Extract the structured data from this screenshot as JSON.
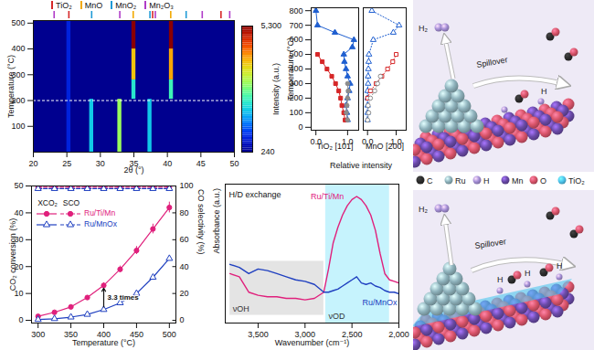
{
  "chart_data": [
    {
      "type": "heatmap",
      "xlabel": "2θ (°)",
      "ylabel": "Temperature (°C)",
      "xlim": [
        20,
        50
      ],
      "xticks": [
        20,
        25,
        30,
        35,
        40,
        45,
        50
      ],
      "ylim": [
        0,
        510
      ],
      "yticks": [
        100,
        200,
        300,
        400,
        500
      ],
      "cells": [
        {
          "x": [
            20,
            50
          ],
          "y": [
            0,
            510
          ],
          "value": 240
        },
        {
          "x": [
            25.0,
            25.6
          ],
          "y": [
            0,
            510
          ],
          "value": 800
        },
        {
          "x": [
            28.4,
            29.0
          ],
          "y": [
            0,
            205
          ],
          "value": 1900
        },
        {
          "x": [
            32.6,
            33.2
          ],
          "y": [
            0,
            205
          ],
          "value": 3000
        },
        {
          "x": [
            37.1,
            37.7
          ],
          "y": [
            0,
            205
          ],
          "value": 1900
        },
        {
          "x": [
            34.7,
            35.3
          ],
          "y": [
            205,
            280
          ],
          "value": 2200
        },
        {
          "x": [
            34.7,
            35.3
          ],
          "y": [
            280,
            400
          ],
          "value": 3800
        },
        {
          "x": [
            34.7,
            35.3
          ],
          "y": [
            400,
            510
          ],
          "value": 5300
        },
        {
          "x": [
            40.3,
            40.9
          ],
          "y": [
            205,
            280
          ],
          "value": 2400
        },
        {
          "x": [
            40.3,
            40.9
          ],
          "y": [
            280,
            400
          ],
          "value": 4000
        },
        {
          "x": [
            40.3,
            40.9
          ],
          "y": [
            400,
            510
          ],
          "value": 5300
        }
      ],
      "colorbar": {
        "label": "Intensity (a.u.)",
        "range": [
          240,
          5300
        ],
        "ticks": [
          240,
          5300
        ]
      },
      "hline": 200,
      "phases": [
        {
          "name": "TiO₂",
          "color": "#d62728",
          "positions": [
            25.3,
            37.8,
            48.0
          ]
        },
        {
          "name": "MnO",
          "color": "#f2a900",
          "positions": [
            34.9,
            40.5
          ]
        },
        {
          "name": "MnO₂",
          "color": "#1f9ad6",
          "positions": [
            28.7,
            37.4,
            42.8
          ]
        },
        {
          "name": "Mn₂O₃",
          "color": "#b03cc8",
          "positions": [
            23.1,
            32.9,
            38.2,
            45.2,
            49.3
          ]
        }
      ]
    },
    {
      "type": "scatter",
      "xlabel": "Relative intensity",
      "ylabel": "Temperature (°C)",
      "ylim": [
        -20,
        820
      ],
      "yticks": [
        0,
        100,
        200,
        300,
        400,
        500,
        600,
        700,
        800
      ],
      "panels": [
        {
          "title": "TiO₂ [101]",
          "xlim": [
            -0.15,
            1.35
          ],
          "xticks": [
            0,
            1
          ],
          "series": [
            {
              "color": "#1f5fd0",
              "marker": "triangle",
              "line_style": "solid",
              "x": [
                1.0,
                0.98,
                0.95,
                1.0,
                1.05,
                1.08,
                1.0,
                0.95,
                0.9,
                0.88,
                1.15,
                1.2,
                0.6,
                0.05,
                0.0
              ],
              "y": [
                50,
                100,
                150,
                200,
                250,
                300,
                350,
                400,
                450,
                500,
                550,
                600,
                650,
                700,
                800
              ]
            },
            {
              "color": "#d62728",
              "marker": "square",
              "line_style": "solid",
              "x": [
                0.92,
                0.88,
                0.82,
                0.78,
                0.72,
                0.62,
                0.5,
                0.35,
                0.2,
                0.05
              ],
              "y": [
                50,
                100,
                150,
                200,
                250,
                300,
                350,
                400,
                450,
                500
              ]
            },
            {
              "color": "#8c8c8c",
              "marker": "circle",
              "line_style": "solid",
              "x": [
                1.0,
                0.96,
                0.98,
                1.0,
                1.02,
                1.0
              ],
              "y": [
                50,
                100,
                150,
                200,
                250,
                300
              ]
            }
          ]
        },
        {
          "title": "MnO [200]",
          "xlim": [
            -0.15,
            1.35
          ],
          "xticks": [
            0,
            1
          ],
          "series": [
            {
              "color": "#1f5fd0",
              "marker": "open-triangle",
              "line_style": "dotted",
              "x": [
                0,
                0,
                0,
                0,
                0,
                0.02,
                0.02,
                0.03,
                0.04,
                0.05,
                0.2,
                0.9,
                1.1,
                0.15
              ],
              "y": [
                50,
                100,
                150,
                200,
                250,
                300,
                350,
                400,
                450,
                500,
                600,
                650,
                700,
                800
              ]
            },
            {
              "color": "#d62728",
              "marker": "open-square",
              "line_style": "dotted",
              "x": [
                0.0,
                0.1,
                0.3,
                0.5,
                0.7,
                0.88,
                1.0
              ],
              "y": [
                200,
                250,
                300,
                350,
                400,
                450,
                500
              ]
            },
            {
              "color": "#8c8c8c",
              "marker": "open-circle",
              "line_style": "dotted",
              "x": [
                0.0,
                0.04,
                0.02,
                0.1,
                0.25,
                0.35,
                0.45
              ],
              "y": [
                50,
                100,
                150,
                200,
                250,
                300,
                350
              ]
            }
          ]
        }
      ]
    },
    {
      "type": "line",
      "xlabel": "Temperature (°C)",
      "ylabel": "CO₂ conversion (%)",
      "y2label": "CO selectivity (%)",
      "x": [
        300,
        325,
        350,
        375,
        400,
        425,
        450,
        475,
        500
      ],
      "xlim": [
        290,
        510
      ],
      "xticks": [
        300,
        350,
        400,
        450,
        500
      ],
      "ylim": [
        -1,
        50
      ],
      "yticks": [
        0,
        10,
        20,
        30,
        40,
        50
      ],
      "y2lim": [
        -2,
        100
      ],
      "y2ticks": [
        0,
        20,
        40,
        60,
        80,
        100
      ],
      "legend_columns": [
        "XCO₂",
        "SCO"
      ],
      "series": [
        {
          "name": "Ru/Ti/Mn",
          "color": "#e0207c",
          "marker": "circle",
          "line_style": "solid",
          "values": [
            1.5,
            3,
            5,
            8.5,
            13,
            19,
            26,
            34,
            42
          ],
          "errors": [
            0.3,
            0.4,
            0.5,
            0.7,
            1,
            1.2,
            1.5,
            1.8,
            2
          ]
        },
        {
          "name": "Ru/MnOx",
          "color": "#2040c0",
          "marker": "open-triangle",
          "line_style": "solid",
          "values": [
            0.3,
            0.6,
            1.2,
            2.2,
            4,
            6.5,
            10,
            16,
            23
          ]
        },
        {
          "name": "Ru/Ti/Mn",
          "color": "#e0207c",
          "marker": "circle",
          "line_style": "dashed",
          "axis": "y2",
          "values": [
            99,
            99,
            99,
            99,
            99,
            99,
            99,
            99,
            99
          ]
        },
        {
          "name": "Ru/MnOx",
          "color": "#2040c0",
          "marker": "open-triangle",
          "line_style": "dashed",
          "axis": "y2",
          "values": [
            98,
            98,
            98,
            98,
            98,
            98,
            98,
            98,
            98
          ]
        }
      ],
      "annotation": {
        "text": "3.3 times",
        "x": 400
      }
    },
    {
      "type": "line",
      "title": "H/D exchange",
      "xlabel": "Wavenumber (cm⁻¹)",
      "ylabel": "Absorbance (a.u.)",
      "x": [
        3800,
        3700,
        3600,
        3500,
        3400,
        3300,
        3200,
        3100,
        3000,
        2900,
        2800,
        2750,
        2700,
        2650,
        2600,
        2550,
        2500,
        2450,
        2400,
        2350,
        2300,
        2250,
        2200,
        2150,
        2100,
        2050,
        2000
      ],
      "xlim": [
        3850,
        2000
      ],
      "xticks": [
        3500,
        3000,
        2500,
        2000
      ],
      "ylim": [
        0.1,
        1.0
      ],
      "tick_labels": "x",
      "regions": [
        {
          "label": "νOH",
          "color": "#d9d9d9",
          "x": [
            3800,
            2800
          ],
          "y": [
            0.15,
            0.5
          ]
        },
        {
          "label": "νOD",
          "color": "#aeeefc",
          "x": [
            2780,
            2100
          ],
          "y": [
            0.1,
            1.0
          ]
        }
      ],
      "series": [
        {
          "name": "Ru/Ti/Mn",
          "color": "#e0207c",
          "values": [
            0.42,
            0.4,
            0.3,
            0.28,
            0.27,
            0.27,
            0.26,
            0.26,
            0.25,
            0.26,
            0.3,
            0.45,
            0.62,
            0.72,
            0.8,
            0.86,
            0.9,
            0.92,
            0.9,
            0.86,
            0.8,
            0.7,
            0.55,
            0.42,
            0.38,
            0.37,
            0.36
          ]
        },
        {
          "name": "Ru/MnOx",
          "color": "#2040c0",
          "values": [
            0.48,
            0.46,
            0.42,
            0.45,
            0.44,
            0.42,
            0.4,
            0.38,
            0.37,
            0.35,
            0.3,
            0.3,
            0.31,
            0.32,
            0.34,
            0.36,
            0.38,
            0.4,
            0.36,
            0.35,
            0.36,
            0.34,
            0.33,
            0.31,
            0.3,
            0.3,
            0.29
          ]
        }
      ]
    }
  ],
  "schematic": {
    "legend": [
      {
        "name": "C",
        "color": "#2b2b2b"
      },
      {
        "name": "Ru",
        "color": "#8fb3bd"
      },
      {
        "name": "H",
        "color": "#a58fd6"
      },
      {
        "name": "Mn",
        "color": "#6a4aa8"
      },
      {
        "name": "O",
        "color": "#d9546a"
      },
      {
        "name": "TiO₂",
        "color": "#4fc6ee"
      }
    ],
    "panels": [
      {
        "labels": [
          "H₂",
          "Spillover",
          "H"
        ]
      },
      {
        "labels": [
          "H₂",
          "Spillover",
          "H",
          "H",
          "H"
        ]
      }
    ]
  }
}
